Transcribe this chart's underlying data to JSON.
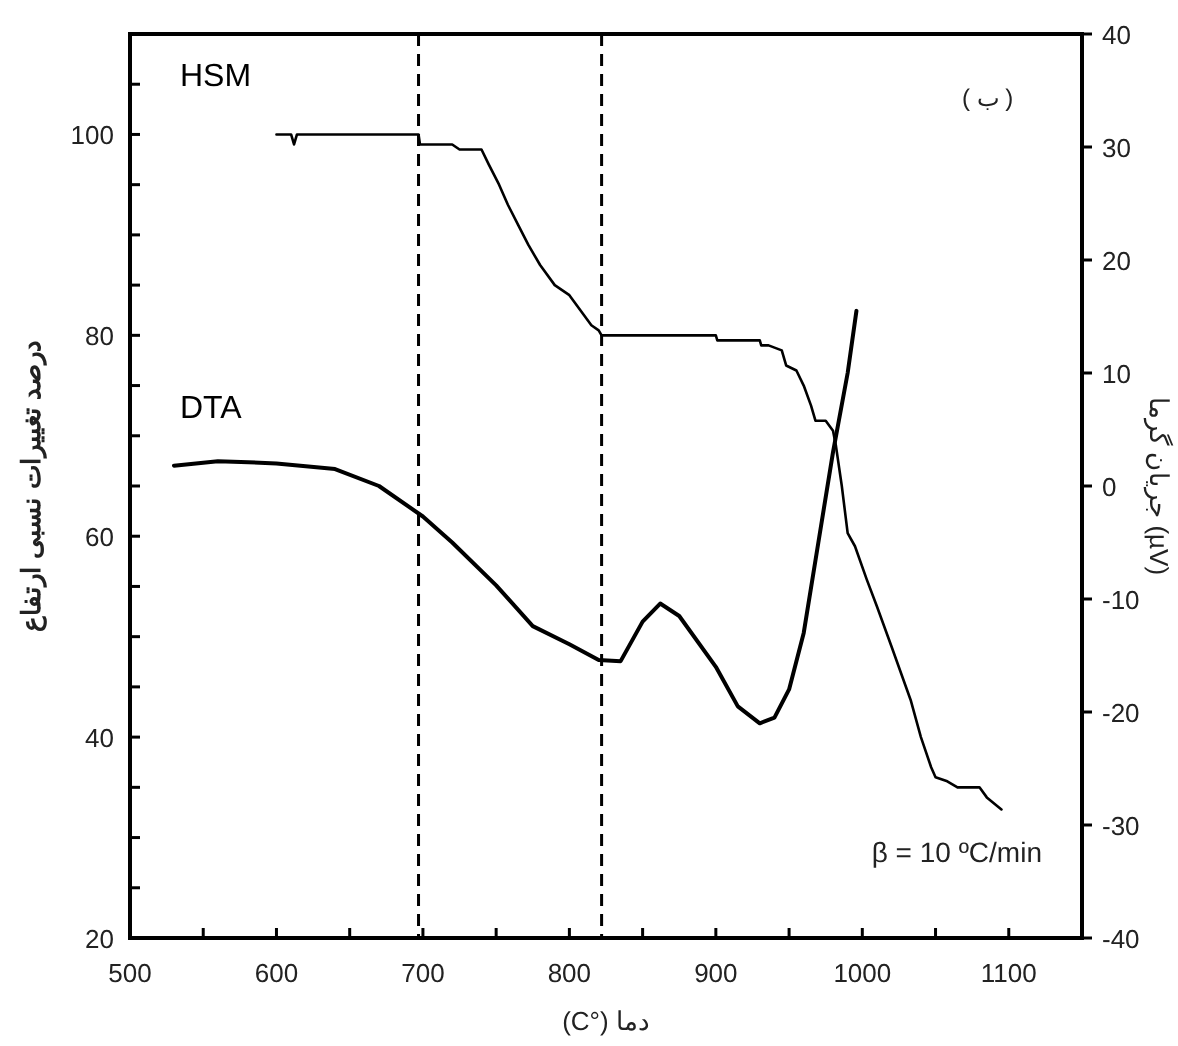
{
  "chart_data": {
    "type": "line",
    "xlabel": "دما (°C)",
    "ylabel": "درصد تغییرات نسبی ارتفاع",
    "y2label": "جریان گرما (µV)",
    "annotations": [
      "( ب )",
      "β = 10 ºC/min"
    ],
    "xlim": [
      500,
      1150
    ],
    "xticks": [
      500,
      {
        "value": 550,
        "label": null
      },
      600,
      {
        "value": 650,
        "label": null
      },
      700,
      {
        "value": 750,
        "label": null
      },
      800,
      {
        "value": 850,
        "label": null
      },
      900,
      {
        "value": 950,
        "label": null
      },
      1000,
      {
        "value": 1050,
        "label": null
      },
      1100
    ],
    "ylim": [
      20,
      110
    ],
    "yticks": [
      20,
      {
        "value": 25,
        "label": null
      },
      {
        "value": 30,
        "label": null
      },
      {
        "value": 35,
        "label": null
      },
      40,
      {
        "value": 45,
        "label": null
      },
      {
        "value": 50,
        "label": null
      },
      {
        "value": 55,
        "label": null
      },
      60,
      {
        "value": 65,
        "label": null
      },
      {
        "value": 70,
        "label": null
      },
      {
        "value": 75,
        "label": null
      },
      80,
      {
        "value": 85,
        "label": null
      },
      {
        "value": 90,
        "label": null
      },
      {
        "value": 95,
        "label": null
      },
      100,
      {
        "value": 105,
        "label": null
      }
    ],
    "y2lim": [
      -40,
      40
    ],
    "y2ticks": [
      -40,
      -30,
      -20,
      -10,
      0,
      10,
      20,
      30,
      40
    ],
    "ref_lines": [
      {
        "axis": "x",
        "value": 697,
        "label": null,
        "color": "#000000",
        "line_style": "dashed"
      },
      {
        "axis": "x",
        "value": 822,
        "label": null,
        "color": "#000000",
        "line_style": "dashed"
      }
    ],
    "grid": false,
    "series": [
      {
        "name": "HSM",
        "color": "#000000",
        "x": [
          600,
          610,
          612,
          614,
          620,
          660,
          697,
          698,
          720,
          725,
          740,
          745,
          752,
          758,
          765,
          772,
          780,
          790,
          800,
          810,
          815,
          820,
          822,
          850,
          880,
          900,
          901,
          930,
          931,
          936,
          945,
          948,
          955,
          960,
          965,
          968,
          975,
          980,
          982,
          986,
          990,
          995,
          1003,
          1010,
          1020,
          1033,
          1040,
          1047,
          1050,
          1058,
          1065,
          1080,
          1085,
          1095
        ],
        "values": [
          100,
          100,
          99,
          100,
          100,
          100,
          100,
          99,
          99,
          98.5,
          98.5,
          97,
          95,
          93,
          91,
          89,
          87,
          85,
          84,
          82,
          81,
          80.5,
          80,
          80,
          80,
          80,
          79.5,
          79.5,
          79,
          79,
          78.5,
          77,
          76.5,
          75,
          73,
          71.5,
          71.5,
          70.5,
          69,
          65,
          60.3,
          59,
          55.7,
          53,
          49,
          43.7,
          40,
          37,
          36,
          35.6,
          35,
          35,
          34,
          32.8
        ]
      },
      {
        "name": "DTA",
        "color": "#000000",
        "axis": "y2",
        "x": [
          530,
          560,
          600,
          640,
          670,
          700,
          720,
          750,
          775,
          800,
          820,
          835,
          850,
          862,
          875,
          900,
          915,
          930,
          940,
          950,
          960,
          970,
          980,
          990,
          996
        ],
        "values": [
          1.8,
          2.2,
          2,
          1.5,
          0,
          -2.7,
          -5,
          -8.8,
          -12.4,
          -14,
          -15.4,
          -15.5,
          -12,
          -10.4,
          -11.5,
          -16,
          -19.5,
          -21,
          -20.5,
          -18,
          -13,
          -5,
          3,
          10,
          15.5
        ]
      }
    ]
  }
}
